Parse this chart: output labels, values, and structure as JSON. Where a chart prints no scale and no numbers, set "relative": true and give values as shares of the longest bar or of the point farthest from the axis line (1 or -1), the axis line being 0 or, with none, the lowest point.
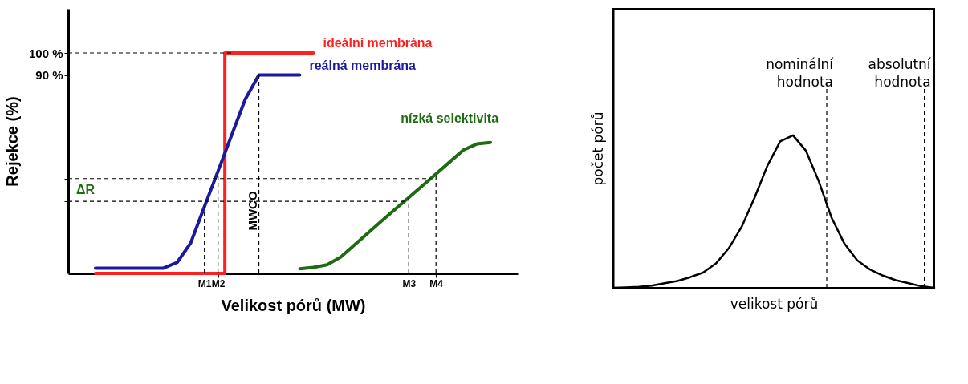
{
  "chart_data": [
    {
      "type": "line",
      "xlabel": "Velikost pórů (MW)",
      "ylabel": "Rejekce (%)",
      "ylim": [
        0,
        120
      ],
      "categories": [
        null,
        null,
        null,
        null,
        null,
        null,
        null,
        null,
        null,
        null,
        "M1",
        "M2",
        null,
        null,
        null,
        null,
        null,
        null,
        null,
        null,
        null,
        null,
        null,
        null,
        null,
        "M3",
        null,
        "M4",
        null,
        null,
        null,
        null,
        null,
        null
      ],
      "yticks": [
        {
          "value": 100,
          "label": "100 %"
        },
        {
          "value": 90,
          "label": "90 %"
        },
        {
          "value": 43,
          "label": null
        },
        {
          "value": 32.7,
          "label": null
        }
      ],
      "series": [
        {
          "name": "ideální membrána",
          "color": "#ff2020",
          "type": "step",
          "values": [
            null,
            null,
            0,
            0,
            0,
            0,
            0,
            0,
            0,
            0,
            0,
            0,
            100,
            100,
            100,
            100,
            100,
            100,
            100,
            null,
            null,
            null,
            null,
            null,
            null,
            null,
            null,
            null,
            null,
            null,
            null,
            null,
            null,
            null
          ]
        },
        {
          "name": "reálná membrána",
          "color": "#1a1a9c",
          "values": [
            null,
            null,
            2.4,
            2.4,
            2.4,
            2.4,
            2.4,
            2.4,
            5,
            13.9,
            30.3,
            46.4,
            62.7,
            79,
            90,
            90,
            90,
            90,
            null,
            null,
            null,
            null,
            null,
            null,
            null,
            null,
            null,
            null,
            null,
            null,
            null,
            null,
            null,
            null
          ]
        },
        {
          "name": "nízká selektivita",
          "color": "#1e6b12",
          "values": [
            null,
            null,
            null,
            null,
            null,
            null,
            null,
            null,
            null,
            null,
            null,
            null,
            null,
            null,
            null,
            null,
            null,
            2.1,
            2.7,
            3.9,
            7.4,
            12.8,
            18.3,
            23.7,
            29.1,
            34.4,
            39.7,
            45.1,
            50.5,
            55.9,
            58.7,
            59.4,
            null,
            null
          ]
        }
      ],
      "ref_lines": [
        {
          "axis": "y",
          "value": 100,
          "label": null,
          "line_style": "dashed",
          "color": "#000000"
        },
        {
          "axis": "y",
          "value": 90,
          "label": null,
          "line_style": "dashed",
          "color": "#000000"
        },
        {
          "axis": "y",
          "value": 43,
          "label": null,
          "line_style": "dashed",
          "color": "#000000"
        },
        {
          "axis": "y",
          "value": 32.7,
          "label": null,
          "line_style": "dashed",
          "color": "#000000"
        },
        {
          "axis": "x",
          "value": "M1",
          "label": null,
          "line_style": "dashed",
          "color": "#000000"
        },
        {
          "axis": "x",
          "value": "M2",
          "label": null,
          "line_style": "dashed",
          "color": "#000000"
        },
        {
          "axis": "x",
          "value": "M3",
          "label": null,
          "line_style": "dashed",
          "color": "#000000"
        },
        {
          "axis": "x",
          "value": "M4",
          "label": null,
          "line_style": "dashed",
          "color": "#000000"
        }
      ],
      "annotations": [
        "ΔR",
        "MWCO"
      ]
    },
    {
      "type": "line",
      "relative": true,
      "xlabel": "velikost pórů",
      "ylabel": "počet pórů",
      "categories": [
        null,
        null,
        null,
        null,
        null,
        null,
        null,
        null,
        null,
        null,
        null,
        null,
        null,
        null,
        null,
        null,
        null,
        null,
        null,
        null,
        null,
        null,
        null,
        null,
        null,
        null
      ],
      "series": [
        {
          "color": "#000000",
          "values": [
            0,
            0.003,
            0.007,
            0.015,
            0.03,
            0.045,
            0.07,
            0.1,
            0.16,
            0.26,
            0.4,
            0.59,
            0.8,
            0.96,
            1,
            0.9,
            0.7,
            0.46,
            0.29,
            0.18,
            0.12,
            0.08,
            0.05,
            0.03,
            0.01,
            0
          ]
        }
      ],
      "annotations": [
        "nominální hodnota",
        "absolutní hodnota"
      ]
    }
  ]
}
